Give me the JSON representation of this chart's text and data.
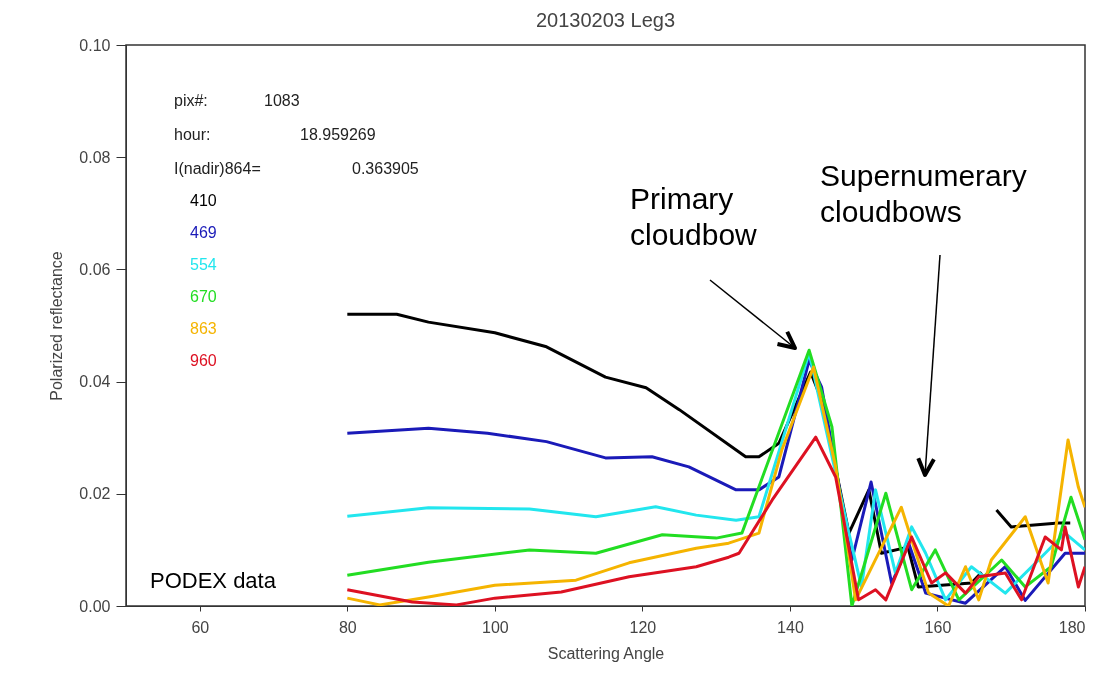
{
  "chart_data": {
    "type": "line",
    "title": "20130203 Leg3",
    "xlabel": "Scattering Angle",
    "ylabel": "Polarized reflectance",
    "xlim": [
      50,
      180
    ],
    "xticks": [
      60,
      80,
      100,
      120,
      140,
      160,
      180
    ],
    "ylim": [
      0,
      0.1
    ],
    "yticks": [
      {
        "value": 0,
        "label": "0.00"
      },
      {
        "value": 0.02,
        "label": "0.02"
      },
      {
        "value": 0.04,
        "label": "0.04"
      },
      {
        "value": 0.06,
        "label": "0.06"
      },
      {
        "value": 0.08,
        "label": "0.08"
      },
      {
        "value": 0.1,
        "label": "0.10"
      }
    ],
    "legend": "top left",
    "annotations": [
      "pix#:",
      "1083",
      "hour:",
      "18.959269",
      "I(nadir)864=",
      "0.363905",
      "PODEX data",
      "Primary cloudbow",
      "Supernumerary cloudbows"
    ],
    "series": [
      {
        "name": "410",
        "color": "#000000",
        "x": [
          80,
          86.7,
          91,
          100,
          107,
          115,
          120.5,
          125,
          134,
          135.8,
          138.5,
          142.8,
          144.3,
          148,
          150.7,
          152.4,
          156,
          157.4,
          164.6,
          166,
          167,
          168,
          170,
          176.4,
          178
        ],
        "values": [
          0.052,
          0.052,
          0.0506,
          0.0487,
          0.0462,
          0.0408,
          0.0389,
          0.035,
          0.0266,
          0.0266,
          0.029,
          0.0417,
          0.0367,
          0.013,
          0.0207,
          0.0094,
          0.0105,
          0.0034,
          0.0041,
          0.006,
          null,
          0.0171,
          0.0141,
          0.0148,
          0.0148
        ]
      },
      {
        "name": "469",
        "color": "#1a1ab8",
        "x": [
          80,
          91,
          99,
          107,
          115,
          121.3,
          126.3,
          132.7,
          135.8,
          138.5,
          142.6,
          144.3,
          148.4,
          151,
          152.4,
          153.8,
          156.1,
          158.4,
          163.8,
          169.2,
          171.9,
          177.3,
          180
        ],
        "values": [
          0.0308,
          0.0317,
          0.0308,
          0.0293,
          0.0264,
          0.0266,
          0.0248,
          0.0207,
          0.0207,
          0.023,
          0.0438,
          0.039,
          0.0082,
          0.0221,
          0.013,
          0.004,
          0.0112,
          0.0023,
          0.0005,
          0.007,
          0.001,
          0.0094,
          0.0094
        ]
      },
      {
        "name": "554",
        "color": "#22e6ee",
        "x": [
          80,
          91,
          104.7,
          113.7,
          121.8,
          127.3,
          132.7,
          135.8,
          142.6,
          148,
          149.7,
          151.6,
          154.3,
          156.5,
          158.4,
          161.1,
          164.6,
          169.2,
          173.7,
          177.3,
          180
        ],
        "values": [
          0.016,
          0.0175,
          0.0173,
          0.0159,
          0.0177,
          0.0162,
          0.0153,
          0.0159,
          0.0451,
          0.013,
          0.0034,
          0.0207,
          0.0059,
          0.0141,
          0.0094,
          0.0011,
          0.007,
          0.0023,
          0.0082,
          0.013,
          0.01
        ]
      },
      {
        "name": "670",
        "color": "#22dd22",
        "x": [
          80,
          91,
          104.7,
          113.7,
          122.7,
          130,
          133.5,
          142.6,
          145.7,
          148.4,
          153,
          156.5,
          159.7,
          162.9,
          168.7,
          171.9,
          175.4,
          178.1,
          180
        ],
        "values": [
          0.0055,
          0.0078,
          0.01,
          0.0094,
          0.0127,
          0.0121,
          0.013,
          0.0456,
          0.0319,
          0,
          0.0201,
          0.0029,
          0.01,
          0.0011,
          0.0082,
          0.0034,
          0.007,
          0.0194,
          0.0118
        ]
      },
      {
        "name": "863",
        "color": "#f5b400",
        "x": [
          80,
          84.4,
          91,
          100,
          111,
          118.2,
          127.3,
          131.7,
          135.8,
          138.9,
          143.2,
          146.2,
          148.9,
          155.1,
          158.8,
          161.5,
          163.8,
          165.6,
          167.3,
          171.9,
          175,
          177.7,
          179.1,
          180
        ],
        "values": [
          0.0014,
          0.0002,
          0.0016,
          0.0037,
          0.0046,
          0.0077,
          0.0103,
          0.0112,
          0.013,
          0.0278,
          0.0426,
          0.0248,
          0.0011,
          0.0176,
          0.0023,
          0,
          0.007,
          0.0011,
          0.0082,
          0.0159,
          0.0041,
          0.0296,
          0.0212,
          0.0176
        ]
      },
      {
        "name": "960",
        "color": "#dd1122",
        "x": [
          80,
          88.8,
          94.8,
          100,
          109,
          118.2,
          127.3,
          131.7,
          133.1,
          137.6,
          143.5,
          146.2,
          149.3,
          151.6,
          153,
          156.5,
          159.2,
          161.1,
          163.8,
          165.6,
          169.2,
          171.4,
          174.6,
          176.8,
          177.3,
          179.1,
          180
        ],
        "values": [
          0.0029,
          0.0007,
          0.0002,
          0.0014,
          0.0025,
          0.0052,
          0.007,
          0.0087,
          0.0094,
          0.0189,
          0.0301,
          0.023,
          0.0011,
          0.0029,
          0.0011,
          0.0123,
          0.0041,
          0.0059,
          0.0023,
          0.0052,
          0.0059,
          0.0011,
          0.0123,
          0.01,
          0.0141,
          0.0034,
          0.007
        ]
      }
    ]
  }
}
